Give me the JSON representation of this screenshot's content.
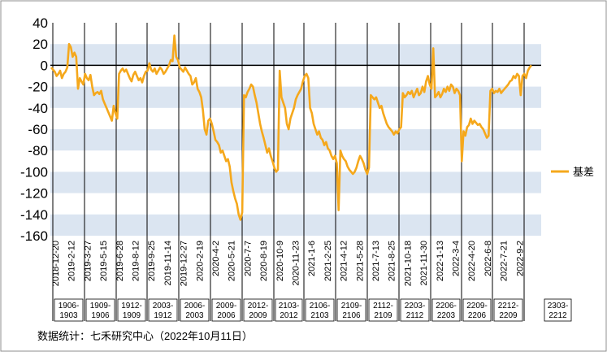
{
  "chart_data": {
    "type": "line",
    "title": "",
    "xlabel": "",
    "ylabel": "",
    "ylim": [
      -160,
      40
    ],
    "yticks": [
      40,
      20,
      0,
      -20,
      -40,
      -60,
      -80,
      -100,
      -120,
      -140,
      -160
    ],
    "grid": "alternating horizontal bands",
    "legend_position": "right",
    "x_ticks": [
      "2018-12-20",
      "2019-2-12",
      "2019-3-27",
      "2019-5-15",
      "2019-6-28",
      "2019-8-12",
      "2019-9-25",
      "2019-11-14",
      "2019-12-27",
      "2020-2-19",
      "2020-4-2",
      "2020-5-21",
      "2020-7-7",
      "2020-8-19",
      "2020-10-9",
      "2020-11-23",
      "2021-1-6",
      "2021-2-25",
      "2021-4-12",
      "2021-5-28",
      "2021-7-13",
      "2021-8-25",
      "2021-10-18",
      "2021-11-30",
      "2022-1-13",
      "2022-3-4",
      "2022-4-20",
      "2022-6-8",
      "2022-7-21",
      "2022-9-2"
    ],
    "contracts": [
      "1906-1903",
      "1909-1906",
      "1912-1909",
      "2003-1912",
      "2006-2003",
      "2009-2006",
      "2012-2009",
      "2103-2012",
      "2106-2103",
      "2109-2106",
      "2112-2109",
      "2203-2112",
      "2206-2203",
      "2209-2206",
      "2212-2209",
      "2303-2212"
    ],
    "series": [
      {
        "name": "基差",
        "color": "#f5a81c",
        "values": [
          -2,
          -4,
          -6,
          -10,
          -8,
          -5,
          -12,
          -8,
          -6,
          -2,
          20,
          17,
          8,
          12,
          8,
          -22,
          -12,
          -15,
          -18,
          -8,
          -12,
          -14,
          -9,
          -20,
          -28,
          -26,
          -25,
          -27,
          -24,
          -32,
          -36,
          -40,
          -44,
          -48,
          -52,
          -38,
          -45,
          -50,
          -8,
          -5,
          -3,
          -6,
          -4,
          -8,
          -12,
          -15,
          -9,
          -6,
          -10,
          -14,
          -12,
          -16,
          -10,
          -6,
          -5,
          2,
          -4,
          -6,
          -3,
          -8,
          -5,
          -2,
          -4,
          -8,
          -6,
          -3,
          0,
          5,
          4,
          28,
          8,
          5,
          -2,
          -4,
          -6,
          -2,
          -5,
          -8,
          -10,
          -18,
          -16,
          -12,
          -22,
          -25,
          -30,
          -42,
          -60,
          -65,
          -52,
          -50,
          -55,
          -62,
          -70,
          -72,
          -75,
          -82,
          -80,
          -85,
          -90,
          -88,
          -95,
          -110,
          -118,
          -125,
          -130,
          -140,
          -145,
          -138,
          -28,
          -30,
          -25,
          -22,
          -18,
          -20,
          -28,
          -35,
          -45,
          -55,
          -62,
          -68,
          -75,
          -82,
          -78,
          -85,
          -90,
          -96,
          -100,
          -98,
          -5,
          -30,
          -35,
          -40,
          -55,
          -60,
          -50,
          -45,
          -40,
          -32,
          -28,
          -25,
          -22,
          -15,
          -10,
          -8,
          -12,
          -40,
          -45,
          -55,
          -60,
          -65,
          -62,
          -68,
          -70,
          -75,
          -72,
          -78,
          -80,
          -85,
          -88,
          -85,
          -92,
          -136,
          -80,
          -85,
          -88,
          -90,
          -95,
          -98,
          -100,
          -102,
          -100,
          -96,
          -90,
          -85,
          -88,
          -92,
          -98,
          -102,
          -96,
          -28,
          -30,
          -32,
          -30,
          -35,
          -40,
          -38,
          -45,
          -50,
          -55,
          -58,
          -60,
          -62,
          -65,
          -62,
          -64,
          -60,
          -58,
          -26,
          -30,
          -28,
          -25,
          -27,
          -24,
          -30,
          -26,
          -22,
          -28,
          -26,
          -20,
          -25,
          -15,
          -10,
          -18,
          -22,
          16,
          -30,
          -28,
          -25,
          -30,
          -27,
          -22,
          -25,
          -20,
          -24,
          -18,
          -20,
          -26,
          -22,
          -24,
          -28,
          -90,
          -62,
          -66,
          -58,
          -56,
          -50,
          -55,
          -52,
          -54,
          -56,
          -55,
          -58,
          -60,
          -64,
          -68,
          -66,
          -24,
          -22,
          -26,
          -24,
          -25,
          -22,
          -26,
          -24,
          -22,
          -20,
          -18,
          -15,
          -14,
          -10,
          -12,
          -8,
          -10,
          -28,
          -10,
          -8,
          -12,
          -5,
          -2,
          0
        ]
      }
    ]
  },
  "legend": {
    "label": "基差"
  },
  "source": "数据统计：七禾研究中心（2022年10月11日）",
  "colors": {
    "line": "#f5a81c",
    "band": "#dbe5f1",
    "axis": "#000000"
  }
}
